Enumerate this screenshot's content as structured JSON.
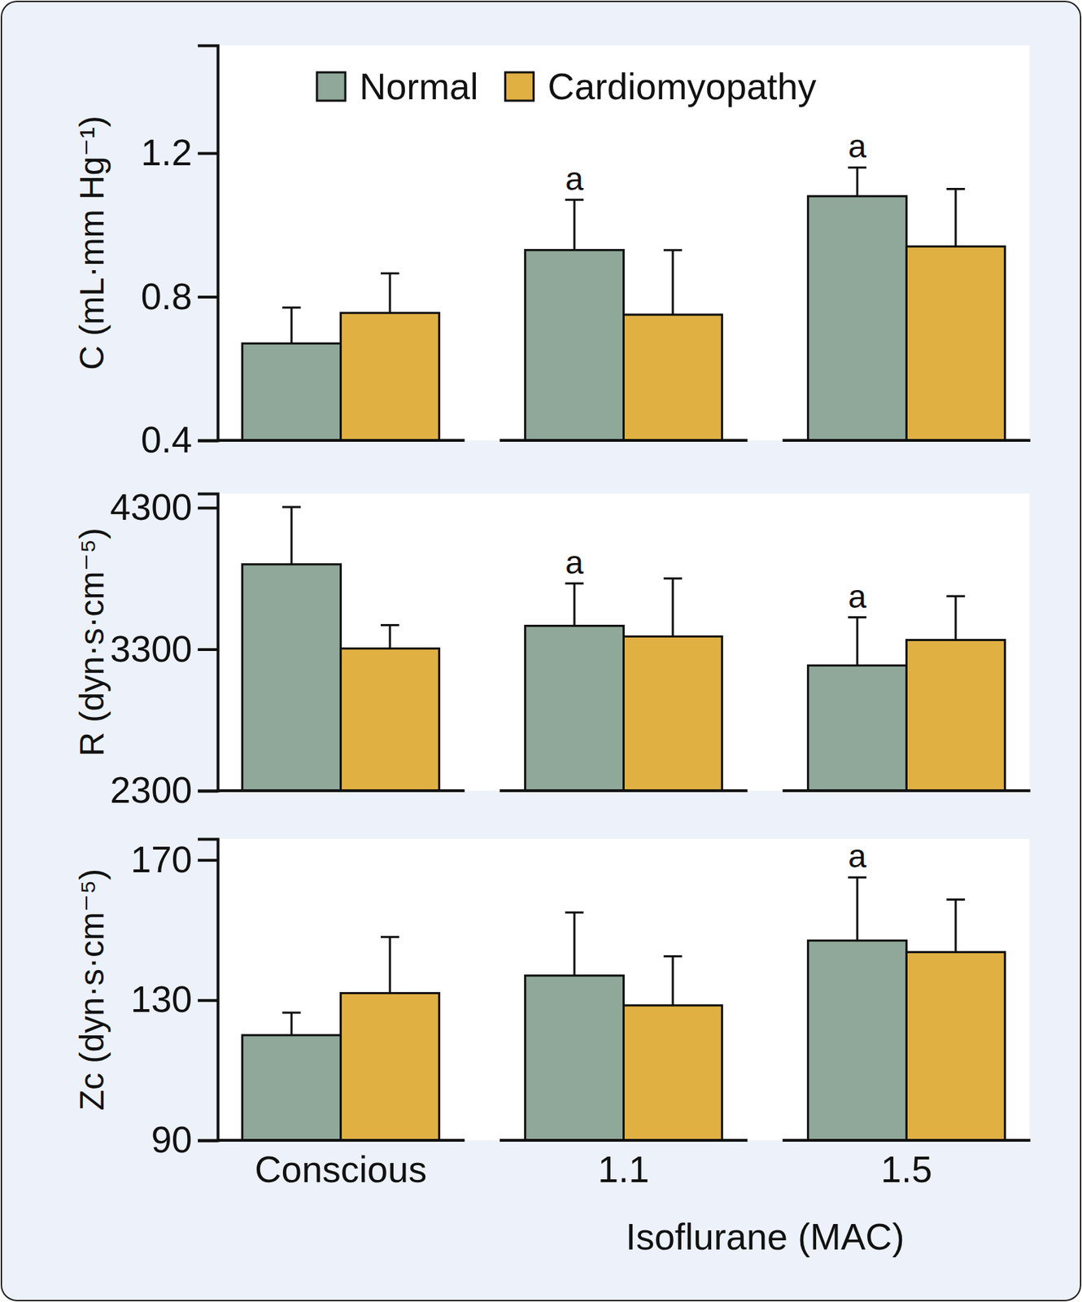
{
  "chart_data": [
    {
      "type": "bar",
      "ylabel": "C (mL·mm Hg⁻¹)",
      "categories": [
        "Conscious",
        "1.1",
        "1.5"
      ],
      "series": [
        {
          "name": "Normal",
          "color": "#8fa899",
          "values": [
            0.67,
            0.93,
            1.08
          ],
          "errors": [
            0.1,
            0.14,
            0.08
          ],
          "annotations": [
            null,
            "a",
            "a"
          ]
        },
        {
          "name": "Cardiomyopathy",
          "color": "#e0b043",
          "values": [
            0.755,
            0.75,
            0.94
          ],
          "errors": [
            0.11,
            0.18,
            0.16
          ]
        }
      ],
      "ylim": [
        0.4,
        1.5
      ],
      "yticks": [
        0.4,
        0.8,
        1.2
      ],
      "legend": "top",
      "tick_labels": "y"
    },
    {
      "type": "bar",
      "ylabel": "R (dyn·s·cm⁻⁵)",
      "categories": [
        "Conscious",
        "1.1",
        "1.5"
      ],
      "series": [
        {
          "name": "Normal",
          "color": "#8fa899",
          "values": [
            3900,
            3465,
            3185
          ],
          "errors": [
            405,
            300,
            340
          ],
          "annotations": [
            null,
            "a",
            "a"
          ]
        },
        {
          "name": "Cardiomyopathy",
          "color": "#e0b043",
          "values": [
            3305,
            3390,
            3365
          ],
          "errors": [
            165,
            410,
            310
          ]
        }
      ],
      "ylim": [
        2300,
        4400
      ],
      "yticks": [
        2300,
        3300,
        4300
      ],
      "tick_labels": "y"
    },
    {
      "type": "bar",
      "ylabel": "Zc (dyn·s·cm⁻⁵)",
      "xlabel": "Isoflurane (MAC)",
      "categories": [
        "Conscious",
        "1.1",
        "1.5"
      ],
      "series": [
        {
          "name": "Normal",
          "color": "#8fa899",
          "values": [
            120,
            137,
            147
          ],
          "errors": [
            6.4,
            18,
            18
          ],
          "annotations": [
            null,
            null,
            "a"
          ]
        },
        {
          "name": "Cardiomyopathy",
          "color": "#e0b043",
          "values": [
            132,
            128.5,
            143.7
          ],
          "errors": [
            16,
            14,
            15
          ]
        }
      ],
      "ylim": [
        90,
        176
      ],
      "yticks": [
        90,
        130,
        170
      ]
    }
  ]
}
